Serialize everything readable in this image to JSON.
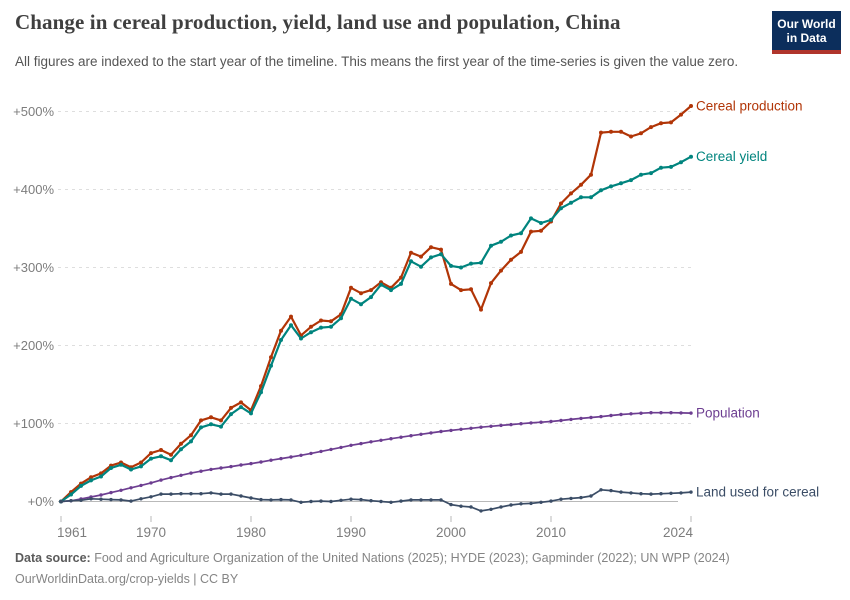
{
  "header": {
    "title": "Change in cereal production, yield, land use and population, China",
    "subtitle": "All figures are indexed to the start year of the timeline. This means the first year of the time-series is given the value zero.",
    "logo_line1": "Our World",
    "logo_line2": "in Data",
    "logo_bg_color": "#0c2e5c",
    "logo_accent_color": "#b0352c"
  },
  "footer": {
    "source_label": "Data source:",
    "source_text": "Food and Agriculture Organization of the United Nations (2025); HYDE (2023); Gapminder (2022); UN WPP (2024)",
    "link_line": "OurWorldinData.org/crop-yields | CC BY"
  },
  "chart_data": {
    "type": "line",
    "title": "Change in cereal production, yield, land use and population, China",
    "xlabel": "",
    "ylabel": "",
    "xlim": [
      1961,
      2024
    ],
    "ylim": [
      -15,
      540
    ],
    "grid": true,
    "legend_position": "right-of-line-ends",
    "yticks": [
      {
        "value": 0,
        "label": "+0%"
      },
      {
        "value": 100,
        "label": "+100%"
      },
      {
        "value": 200,
        "label": "+200%"
      },
      {
        "value": 300,
        "label": "+300%"
      },
      {
        "value": 400,
        "label": "+400%"
      },
      {
        "value": 500,
        "label": "+500%"
      }
    ],
    "xticks": [
      1961,
      1970,
      1980,
      1990,
      2000,
      2010,
      2024
    ],
    "x": [
      1961,
      1962,
      1963,
      1964,
      1965,
      1966,
      1967,
      1968,
      1969,
      1970,
      1971,
      1972,
      1973,
      1974,
      1975,
      1976,
      1977,
      1978,
      1979,
      1980,
      1981,
      1982,
      1983,
      1984,
      1985,
      1986,
      1987,
      1988,
      1989,
      1990,
      1991,
      1992,
      1993,
      1994,
      1995,
      1996,
      1997,
      1998,
      1999,
      2000,
      2001,
      2002,
      2003,
      2004,
      2005,
      2006,
      2007,
      2008,
      2009,
      2010,
      2011,
      2012,
      2013,
      2014,
      2015,
      2016,
      2017,
      2018,
      2019,
      2020,
      2021,
      2022,
      2023,
      2024
    ],
    "series": [
      {
        "name": "Cereal production",
        "color": "#B13507",
        "unit": "% change since 1961",
        "values": [
          0,
          12,
          23,
          31,
          36,
          46,
          50,
          44,
          50,
          62,
          66,
          60,
          74,
          85,
          104,
          108,
          104,
          120,
          127,
          117,
          148,
          185,
          219,
          237,
          213,
          224,
          232,
          231,
          240,
          274,
          267,
          271,
          281,
          274,
          287,
          319,
          314,
          326,
          323,
          279,
          271,
          272,
          246,
          280,
          296,
          310,
          320,
          346,
          347,
          359,
          382,
          395,
          406,
          419,
          473,
          474,
          474,
          468,
          472,
          480,
          485,
          486,
          496,
          507
        ]
      },
      {
        "name": "Cereal yield",
        "color": "#00847E",
        "unit": "% change since 1961",
        "values": [
          0,
          9,
          20,
          27,
          32,
          43,
          47,
          41,
          45,
          55,
          58,
          53,
          67,
          77,
          95,
          99,
          96,
          112,
          121,
          113,
          140,
          174,
          207,
          226,
          209,
          217,
          223,
          224,
          235,
          260,
          253,
          262,
          278,
          271,
          279,
          308,
          301,
          313,
          317,
          302,
          300,
          305,
          306,
          328,
          333,
          341,
          344,
          363,
          357,
          361,
          376,
          383,
          390,
          390,
          399,
          404,
          408,
          412,
          419,
          421,
          428,
          429,
          435,
          442
        ]
      },
      {
        "name": "Population",
        "color": "#6D3E91",
        "unit": "% change since 1961",
        "values": [
          0,
          0.9,
          3.3,
          5.8,
          8.3,
          11.4,
          14.4,
          17.6,
          20.6,
          23.9,
          27.4,
          30.6,
          33.6,
          36.4,
          38.8,
          41.1,
          42.9,
          44.8,
          46.8,
          48.6,
          50.6,
          52.9,
          55,
          57.1,
          59.2,
          61.7,
          64.2,
          66.8,
          69.4,
          72,
          74.2,
          76.5,
          78.5,
          80.5,
          82.4,
          84.4,
          86.2,
          88,
          89.7,
          91.2,
          92.6,
          93.9,
          95.2,
          96.4,
          97.6,
          98.6,
          99.7,
          100.8,
          101.7,
          102.6,
          103.8,
          105.2,
          106.5,
          107.7,
          108.9,
          110.2,
          111.5,
          112.4,
          113.2,
          113.8,
          113.9,
          113.9,
          113.6,
          113.3
        ]
      },
      {
        "name": "Land used for cereal",
        "color": "#3B4D66",
        "unit": "% change since 1961",
        "values": [
          0,
          1,
          1.5,
          3.5,
          3,
          2.5,
          2,
          0.5,
          3.5,
          6,
          9.5,
          9.5,
          10,
          10,
          10,
          11,
          9.5,
          9.5,
          7,
          4.5,
          2.5,
          2,
          2.5,
          2,
          -1,
          0,
          0.5,
          0,
          1.5,
          3,
          2.5,
          1,
          0,
          -1,
          0.5,
          2,
          2,
          2,
          2,
          -4,
          -6,
          -7,
          -12,
          -10,
          -7,
          -4.5,
          -3,
          -2.5,
          -1,
          0.5,
          3,
          4,
          5,
          7,
          15,
          14,
          12,
          11,
          10,
          9.5,
          10,
          10.5,
          11,
          12
        ]
      }
    ],
    "style": {
      "gridline_color": "#dedede",
      "zero_line_color": "#b9b9b9",
      "axis_text_color": "#7d7d7d"
    }
  }
}
